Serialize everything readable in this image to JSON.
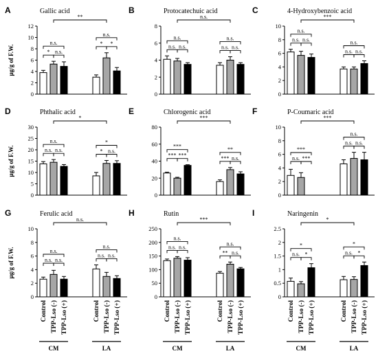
{
  "figure": {
    "categories": [
      "Control",
      "TPP-Lso (-)",
      "TPP-Lso (+)"
    ],
    "groups": [
      "CM",
      "LA"
    ],
    "ylabel": "μg/g of F.W.",
    "series_colors": [
      "#ffffff",
      "#a6a6a6",
      "#000000"
    ]
  },
  "chart_data": [
    {
      "id": "A",
      "letter": "A",
      "title": "Gallic acid",
      "type": "bar",
      "ylim": [
        0,
        12
      ],
      "yticks": [
        0,
        2,
        4,
        6,
        8,
        10,
        12
      ],
      "groups": [
        {
          "name": "CM",
          "values": [
            3.8,
            5.3,
            4.9
          ],
          "errors": [
            0.4,
            0.5,
            0.8
          ]
        },
        {
          "name": "LA",
          "values": [
            3.0,
            6.4,
            4.1
          ],
          "errors": [
            0.4,
            0.9,
            0.6
          ]
        }
      ],
      "sig": [
        {
          "i": 0,
          "j": 1,
          "label": "*",
          "level": 1
        },
        {
          "i": 1,
          "j": 2,
          "label": "n.s.",
          "level": 1
        },
        {
          "i": 0,
          "j": 2,
          "label": "n.s.",
          "level": 2
        },
        {
          "i": 3,
          "j": 4,
          "label": "*",
          "level": 1
        },
        {
          "i": 4,
          "j": 5,
          "label": "*",
          "level": 1
        },
        {
          "i": 3,
          "j": 5,
          "label": "n.s.",
          "level": 2
        },
        {
          "i": 1,
          "j": 4,
          "label": "**",
          "level": 3
        }
      ]
    },
    {
      "id": "B",
      "letter": "B",
      "title": "Protocatechuic acid",
      "type": "bar",
      "ylim": [
        0,
        8
      ],
      "yticks": [
        0,
        2,
        4,
        6,
        8
      ],
      "groups": [
        {
          "name": "CM",
          "values": [
            4.1,
            3.9,
            3.5
          ],
          "errors": [
            0.4,
            0.3,
            0.2
          ]
        },
        {
          "name": "LA",
          "values": [
            3.4,
            4.0,
            3.5
          ],
          "errors": [
            0.3,
            0.4,
            0.2
          ]
        }
      ],
      "sig": [
        {
          "i": 0,
          "j": 1,
          "label": "n.s.",
          "level": 1
        },
        {
          "i": 1,
          "j": 2,
          "label": "n.s.",
          "level": 1
        },
        {
          "i": 0,
          "j": 2,
          "label": "n.s.",
          "level": 2
        },
        {
          "i": 3,
          "j": 4,
          "label": "n.s.",
          "level": 1
        },
        {
          "i": 4,
          "j": 5,
          "label": "n.s.",
          "level": 1
        },
        {
          "i": 3,
          "j": 5,
          "label": "n.s.",
          "level": 2
        },
        {
          "i": 1,
          "j": 4,
          "label": "n.s.",
          "level": 3
        }
      ]
    },
    {
      "id": "C",
      "letter": "C",
      "title": "4-Hydroxybenzoic acid",
      "type": "bar",
      "ylim": [
        0,
        10
      ],
      "yticks": [
        0,
        2,
        4,
        6,
        8,
        10
      ],
      "groups": [
        {
          "name": "CM",
          "values": [
            6.2,
            5.7,
            5.4
          ],
          "errors": [
            0.4,
            0.6,
            0.5
          ]
        },
        {
          "name": "LA",
          "values": [
            3.7,
            3.7,
            4.5
          ],
          "errors": [
            0.3,
            0.3,
            0.4
          ]
        }
      ],
      "sig": [
        {
          "i": 0,
          "j": 1,
          "label": "n.s.",
          "level": 1
        },
        {
          "i": 1,
          "j": 2,
          "label": "n.s.",
          "level": 1
        },
        {
          "i": 0,
          "j": 2,
          "label": "n.s.",
          "level": 2
        },
        {
          "i": 3,
          "j": 4,
          "label": "n.s.",
          "level": 1
        },
        {
          "i": 4,
          "j": 5,
          "label": "n.s.",
          "level": 1
        },
        {
          "i": 3,
          "j": 5,
          "label": "n.s.",
          "level": 2
        },
        {
          "i": 1,
          "j": 4,
          "label": "***",
          "level": 3
        }
      ]
    },
    {
      "id": "D",
      "letter": "D",
      "title": "Phthalic acid",
      "type": "bar",
      "ylim": [
        0,
        30
      ],
      "yticks": [
        0,
        5,
        10,
        15,
        20,
        25,
        30
      ],
      "groups": [
        {
          "name": "CM",
          "values": [
            13.8,
            14.5,
            12.7
          ],
          "errors": [
            1.0,
            1.2,
            0.8
          ]
        },
        {
          "name": "LA",
          "values": [
            8.5,
            14.0,
            14.0
          ],
          "errors": [
            1.5,
            1.3,
            1.2
          ]
        }
      ],
      "sig": [
        {
          "i": 0,
          "j": 1,
          "label": "n.s.",
          "level": 1
        },
        {
          "i": 1,
          "j": 2,
          "label": "n.s.",
          "level": 1
        },
        {
          "i": 0,
          "j": 2,
          "label": "n.s.",
          "level": 2
        },
        {
          "i": 3,
          "j": 4,
          "label": "*",
          "level": 1
        },
        {
          "i": 4,
          "j": 5,
          "label": "n.s.",
          "level": 1
        },
        {
          "i": 3,
          "j": 5,
          "label": "*",
          "level": 2
        },
        {
          "i": 1,
          "j": 4,
          "label": "*",
          "level": 3
        }
      ]
    },
    {
      "id": "E",
      "letter": "E",
      "title": "Chlorogenic acid",
      "type": "bar",
      "ylim": [
        0,
        80
      ],
      "yticks": [
        0,
        20,
        40,
        60,
        80
      ],
      "groups": [
        {
          "name": "CM",
          "values": [
            26,
            20,
            35
          ],
          "errors": [
            1.0,
            1.0,
            0.8
          ]
        },
        {
          "name": "LA",
          "values": [
            16,
            30,
            25
          ],
          "errors": [
            2.0,
            2.5,
            2.5
          ]
        }
      ],
      "sig": [
        {
          "i": 0,
          "j": 1,
          "label": "***",
          "level": 1
        },
        {
          "i": 1,
          "j": 2,
          "label": "***",
          "level": 1
        },
        {
          "i": 0,
          "j": 2,
          "label": "***",
          "level": 2
        },
        {
          "i": 3,
          "j": 4,
          "label": "***",
          "level": 1
        },
        {
          "i": 4,
          "j": 5,
          "label": "n.s.",
          "level": 1
        },
        {
          "i": 3,
          "j": 5,
          "label": "**",
          "level": 2
        },
        {
          "i": 1,
          "j": 4,
          "label": "***",
          "level": 3
        }
      ]
    },
    {
      "id": "F",
      "letter": "F",
      "title": "P-Coumaric acid",
      "type": "bar",
      "ylim": [
        0,
        10
      ],
      "yticks": [
        0,
        2,
        4,
        6,
        8,
        10
      ],
      "groups": [
        {
          "name": "CM",
          "values": [
            2.9,
            2.6,
            0
          ],
          "errors": [
            0.9,
            0.7,
            0
          ]
        },
        {
          "name": "LA",
          "values": [
            4.6,
            5.4,
            5.2
          ],
          "errors": [
            0.6,
            0.9,
            1.1
          ]
        }
      ],
      "sig": [
        {
          "i": 0,
          "j": 1,
          "label": "n.s.",
          "level": 1
        },
        {
          "i": 1,
          "j": 2,
          "label": "***",
          "level": 1
        },
        {
          "i": 0,
          "j": 2,
          "label": "***",
          "level": 2
        },
        {
          "i": 3,
          "j": 4,
          "label": "n.s.",
          "level": 1
        },
        {
          "i": 4,
          "j": 5,
          "label": "n.s.",
          "level": 1
        },
        {
          "i": 3,
          "j": 5,
          "label": "n.s.",
          "level": 2
        },
        {
          "i": 1,
          "j": 4,
          "label": "***",
          "level": 3
        }
      ]
    },
    {
      "id": "G",
      "letter": "G",
      "title": "Ferulic acid",
      "type": "bar",
      "ylim": [
        0,
        10
      ],
      "yticks": [
        0,
        2,
        4,
        6,
        8,
        10
      ],
      "groups": [
        {
          "name": "CM",
          "values": [
            2.6,
            3.3,
            2.6
          ],
          "errors": [
            0.3,
            0.6,
            0.4
          ]
        },
        {
          "name": "LA",
          "values": [
            4.1,
            3.0,
            2.7
          ],
          "errors": [
            0.6,
            0.6,
            0.4
          ]
        }
      ],
      "sig": [
        {
          "i": 0,
          "j": 1,
          "label": "n.s.",
          "level": 1
        },
        {
          "i": 1,
          "j": 2,
          "label": "n.s.",
          "level": 1
        },
        {
          "i": 0,
          "j": 2,
          "label": "n.s.",
          "level": 2
        },
        {
          "i": 3,
          "j": 4,
          "label": "n.s.",
          "level": 1
        },
        {
          "i": 4,
          "j": 5,
          "label": "n.s.",
          "level": 1
        },
        {
          "i": 3,
          "j": 5,
          "label": "n.s.",
          "level": 2
        },
        {
          "i": 1,
          "j": 4,
          "label": "n.s.",
          "level": 3
        }
      ]
    },
    {
      "id": "H",
      "letter": "H",
      "title": "Rutin",
      "type": "bar",
      "ylim": [
        0,
        250
      ],
      "yticks": [
        0,
        50,
        100,
        150,
        200,
        250
      ],
      "groups": [
        {
          "name": "CM",
          "values": [
            133,
            142,
            135
          ],
          "errors": [
            6,
            6,
            9
          ]
        },
        {
          "name": "LA",
          "values": [
            87,
            120,
            103
          ],
          "errors": [
            6,
            8,
            5
          ]
        }
      ],
      "sig": [
        {
          "i": 0,
          "j": 1,
          "label": "n.s.",
          "level": 1
        },
        {
          "i": 1,
          "j": 2,
          "label": "n.s.",
          "level": 1
        },
        {
          "i": 0,
          "j": 2,
          "label": "n.s.",
          "level": 2
        },
        {
          "i": 3,
          "j": 4,
          "label": "**",
          "level": 1
        },
        {
          "i": 4,
          "j": 5,
          "label": "n.s.",
          "level": 1
        },
        {
          "i": 3,
          "j": 5,
          "label": "n.s.",
          "level": 2
        },
        {
          "i": 1,
          "j": 4,
          "label": "***",
          "level": 3
        }
      ]
    },
    {
      "id": "I",
      "letter": "I",
      "title": "Naringenin",
      "type": "bar",
      "ylim": [
        0,
        2.5
      ],
      "yticks": [
        0,
        0.5,
        1,
        1.5,
        2,
        2.5
      ],
      "groups": [
        {
          "name": "CM",
          "values": [
            0.57,
            0.48,
            1.07
          ],
          "errors": [
            0.12,
            0.08,
            0.15
          ]
        },
        {
          "name": "LA",
          "values": [
            0.63,
            0.64,
            1.15
          ],
          "errors": [
            0.12,
            0.1,
            0.13
          ]
        }
      ],
      "sig": [
        {
          "i": 0,
          "j": 1,
          "label": "n.s.",
          "level": 1
        },
        {
          "i": 1,
          "j": 2,
          "label": "*",
          "level": 1
        },
        {
          "i": 0,
          "j": 2,
          "label": "*",
          "level": 2
        },
        {
          "i": 3,
          "j": 4,
          "label": "n.s.",
          "level": 1
        },
        {
          "i": 4,
          "j": 5,
          "label": "*",
          "level": 1
        },
        {
          "i": 3,
          "j": 5,
          "label": "*",
          "level": 2
        },
        {
          "i": 1,
          "j": 4,
          "label": "*",
          "level": 3
        }
      ]
    }
  ]
}
